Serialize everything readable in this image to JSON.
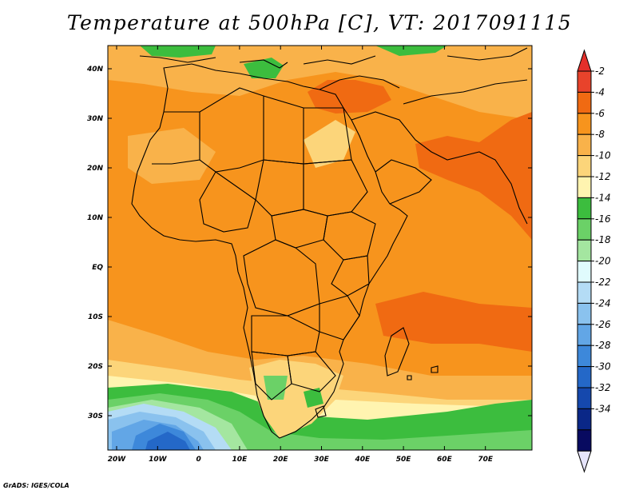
{
  "title": "Temperature at 500hPa [C], VT: 2017091115",
  "credit": "GrADS: IGES/COLA",
  "lon_ticks": [
    "20W",
    "10W",
    "0",
    "10E",
    "20E",
    "30E",
    "40E",
    "50E",
    "60E",
    "70E"
  ],
  "lat_ticks": [
    "40N",
    "30N",
    "20N",
    "10N",
    "EQ",
    "10S",
    "20S",
    "30S"
  ],
  "colorbar": {
    "labels": [
      "-2",
      "-4",
      "-6",
      "-8",
      "-10",
      "-12",
      "-14",
      "-16",
      "-18",
      "-20",
      "-22",
      "-24",
      "-26",
      "-28",
      "-30",
      "-32",
      "-34"
    ],
    "colors": [
      "#e8432b",
      "#f06a12",
      "#f7941d",
      "#f9b24a",
      "#fcd57a",
      "#fff4b0",
      "#3cbd3e",
      "#6bd167",
      "#a4e6a0",
      "#e0fbfd",
      "#b4dcf5",
      "#8ac2ee",
      "#62a6e6",
      "#3d88da",
      "#2468c8",
      "#1548ad",
      "#0a2787",
      "#080a60"
    ],
    "top_color": "#e4302b",
    "bottom_color": "#e6e4fb"
  }
}
